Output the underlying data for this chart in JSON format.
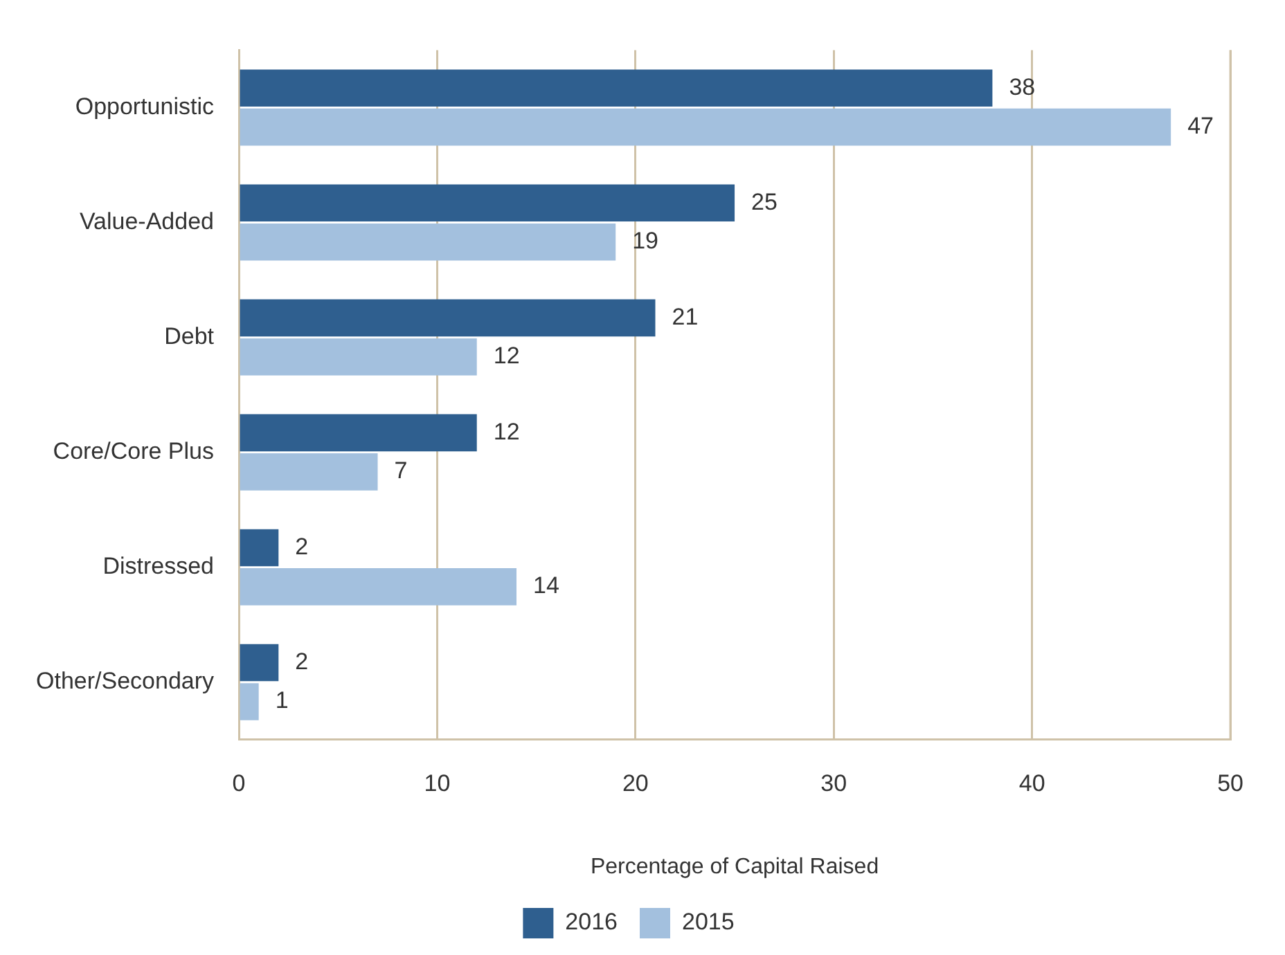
{
  "chart_data": {
    "type": "bar",
    "orientation": "horizontal",
    "xlabel": "Percentage of Capital Raised",
    "categories": [
      "Opportunistic",
      "Value-Added",
      "Debt",
      "Core/Core Plus",
      "Distressed",
      "Other/Secondary"
    ],
    "series": [
      {
        "name": "2016",
        "color": "#2f5f8f",
        "values": [
          38,
          25,
          21,
          12,
          2,
          2
        ]
      },
      {
        "name": "2015",
        "color": "#a3c0de",
        "values": [
          47,
          19,
          12,
          7,
          14,
          1
        ]
      }
    ],
    "xlim": [
      0,
      50
    ],
    "xticks": [
      0,
      10,
      20,
      30,
      40,
      50
    ],
    "grid": "x",
    "legend": "bottom",
    "data_labels": true
  }
}
